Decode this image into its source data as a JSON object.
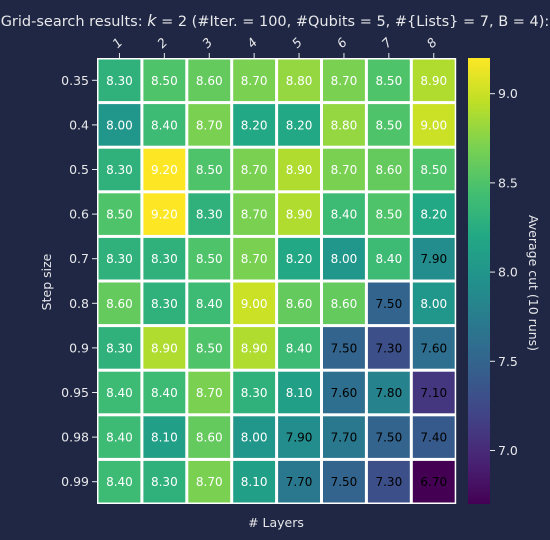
{
  "chart_data": {
    "type": "heatmap",
    "title": "Grid-search results: k = 2 (#Iter. = 100, #Qubits = 5, #{Lists} = 7, B = 4):",
    "title_parts": [
      "Grid-search results: ",
      "k",
      " = 2 (#Iter. = 100, #Qubits = 5, #{Lists} = 7, B = 4):"
    ],
    "xlabel": "# Layers",
    "ylabel": "Step size",
    "colorbar_label": "Average cut (10 runs)",
    "colormap": "viridis",
    "vmin": 6.7,
    "vmax": 9.2,
    "colorbar_ticks": [
      "7.0",
      "7.5",
      "8.0",
      "8.5",
      "9.0"
    ],
    "colorbar_tick_values": [
      7.0,
      7.5,
      8.0,
      8.5,
      9.0
    ],
    "x_categories": [
      "1",
      "2",
      "3",
      "4",
      "5",
      "6",
      "7",
      "8"
    ],
    "y_categories": [
      "0.35",
      "0.4",
      "0.5",
      "0.6",
      "0.7",
      "0.8",
      "0.9",
      "0.95",
      "0.98",
      "0.99"
    ],
    "values": [
      [
        8.3,
        8.5,
        8.6,
        8.7,
        8.8,
        8.7,
        8.5,
        8.9
      ],
      [
        8.0,
        8.4,
        8.7,
        8.2,
        8.2,
        8.8,
        8.5,
        9.0
      ],
      [
        8.3,
        9.2,
        8.5,
        8.7,
        8.9,
        8.7,
        8.6,
        8.5
      ],
      [
        8.5,
        9.2,
        8.3,
        8.7,
        8.9,
        8.4,
        8.5,
        8.2
      ],
      [
        8.3,
        8.3,
        8.5,
        8.7,
        8.2,
        8.0,
        8.4,
        7.9
      ],
      [
        8.6,
        8.3,
        8.4,
        9.0,
        8.6,
        8.6,
        7.5,
        8.0
      ],
      [
        8.3,
        8.9,
        8.5,
        8.9,
        8.4,
        7.5,
        7.3,
        7.6
      ],
      [
        8.4,
        8.4,
        8.7,
        8.3,
        8.1,
        7.6,
        7.8,
        7.1
      ],
      [
        8.4,
        8.1,
        8.6,
        8.0,
        7.9,
        7.7,
        7.5,
        7.4
      ],
      [
        8.4,
        8.3,
        8.7,
        8.1,
        7.7,
        7.5,
        7.3,
        6.7
      ]
    ],
    "value_format_decimals": 2,
    "grid_line_color": "#ffffff",
    "label_dark_color": "#000000",
    "label_light_color": "#ffffff"
  }
}
